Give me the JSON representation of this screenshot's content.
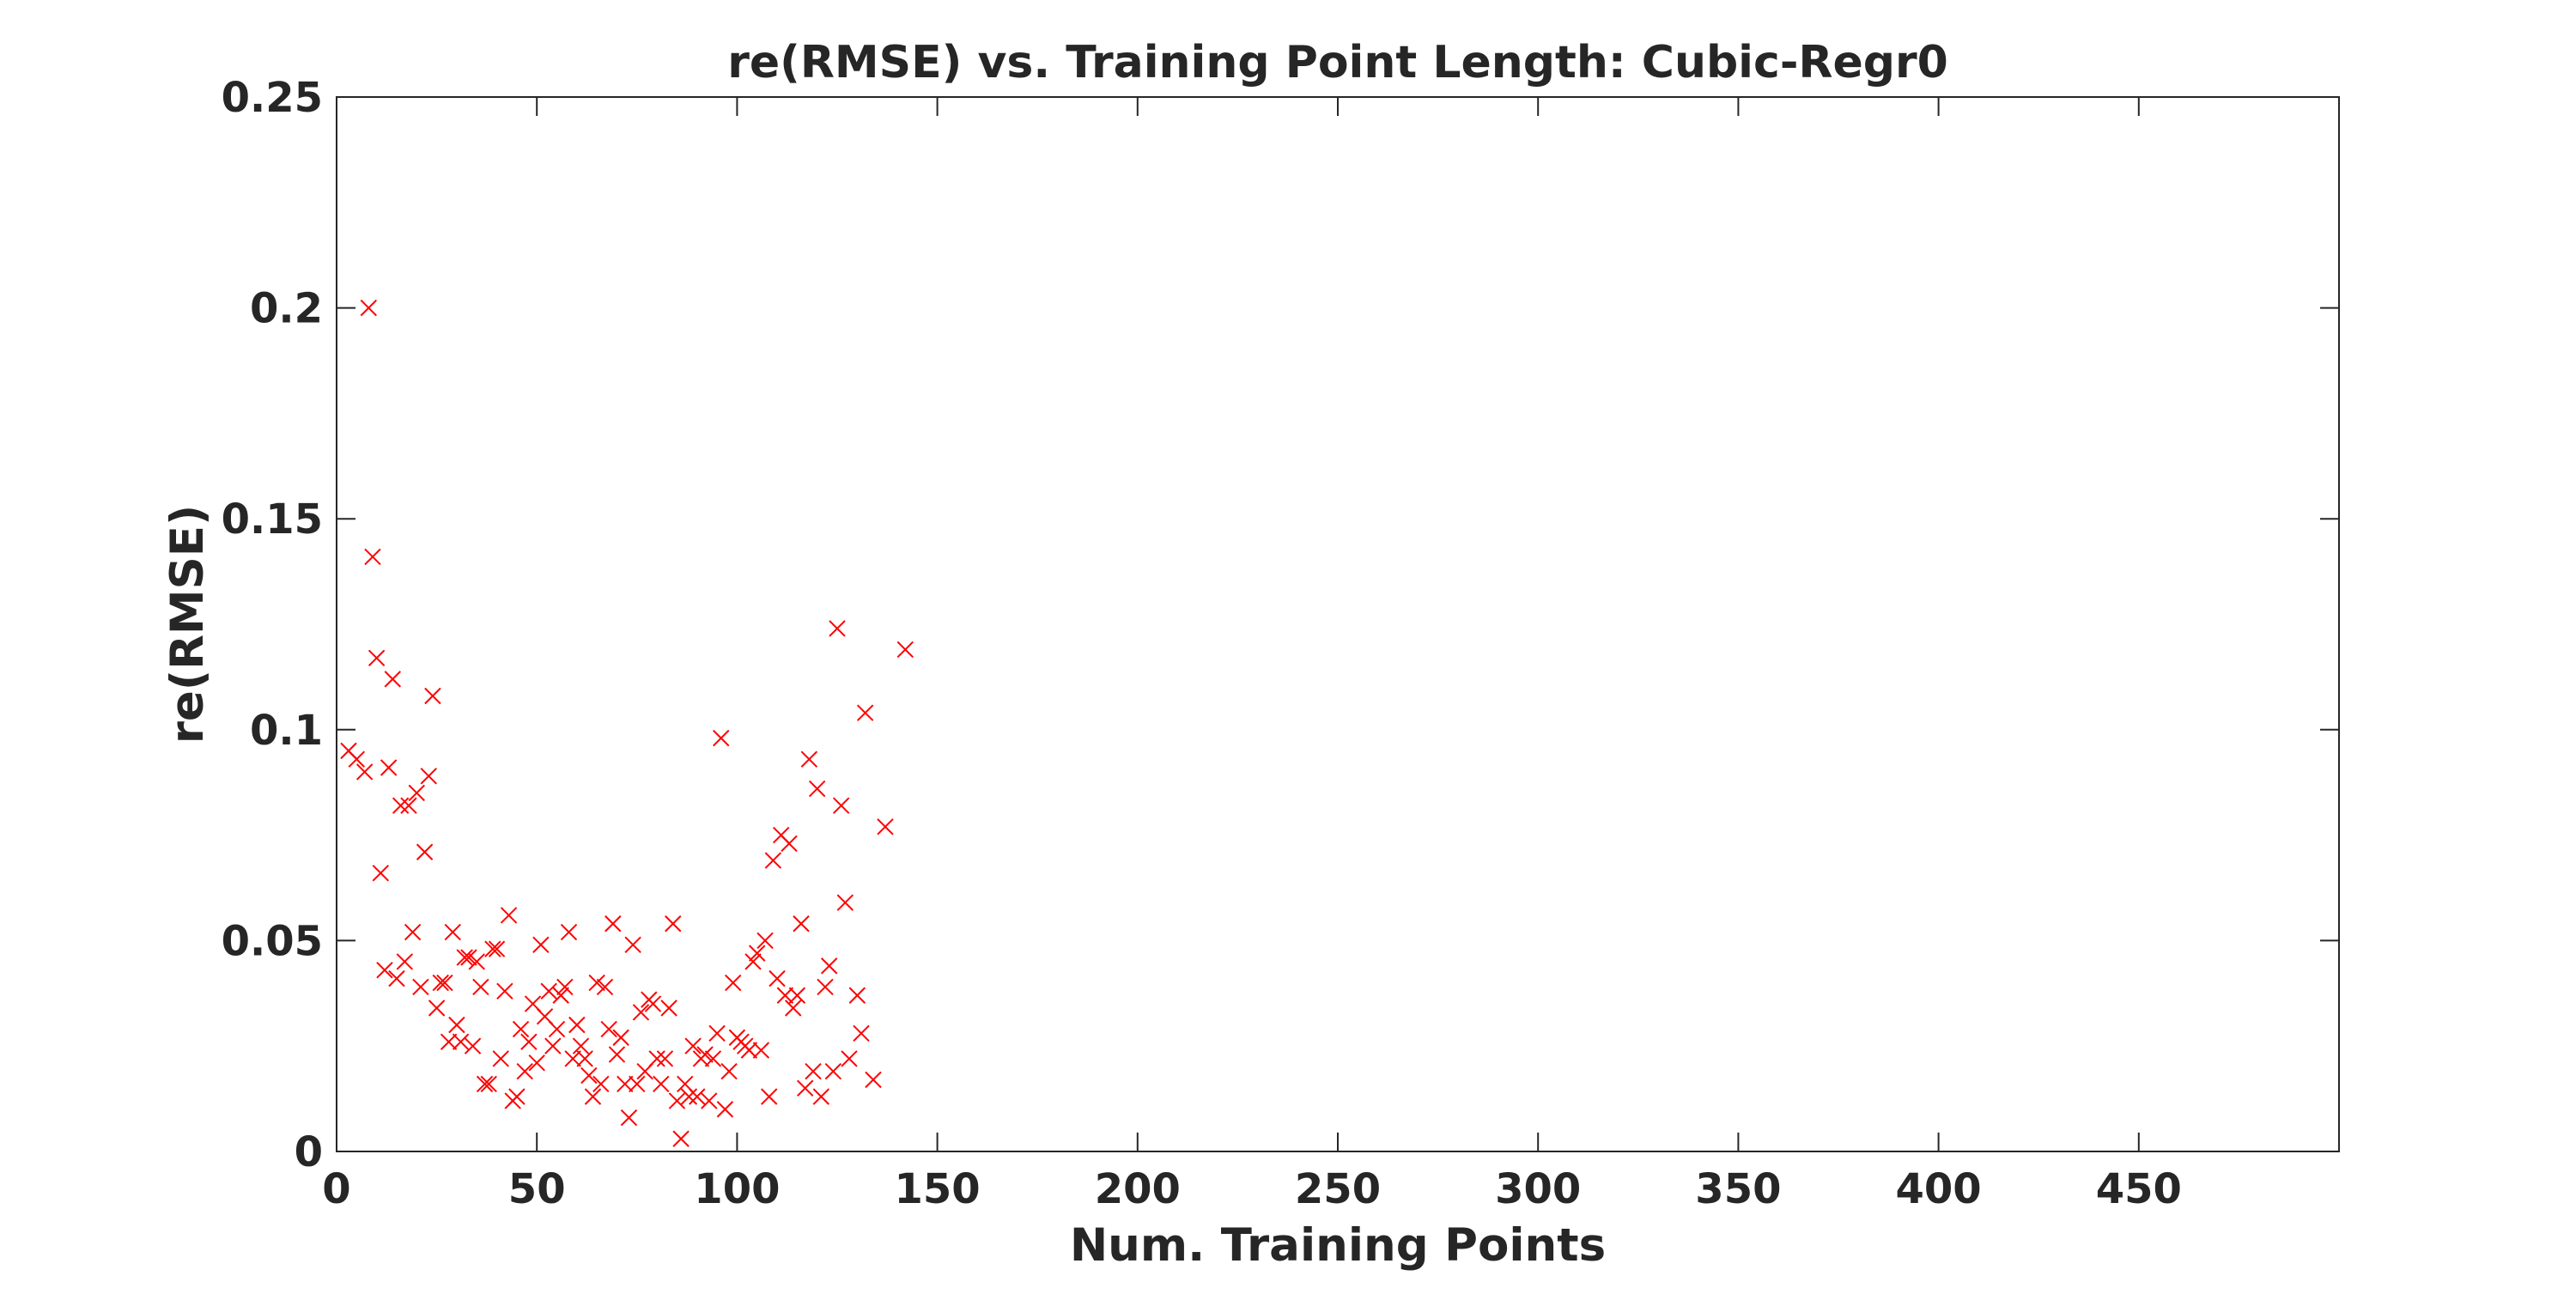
{
  "chart_data": {
    "type": "scatter",
    "title": "re(RMSE) vs. Training Point Length: Cubic-Regr0",
    "xlabel": "Num. Training Points",
    "ylabel": "re(RMSE)",
    "xlim": [
      0,
      500
    ],
    "ylim": [
      0,
      0.25
    ],
    "xticks": [
      0,
      50,
      100,
      150,
      200,
      250,
      300,
      350,
      400,
      450
    ],
    "xtick_labels": [
      "0",
      "50",
      "100",
      "150",
      "200",
      "250",
      "300",
      "350",
      "400",
      "450"
    ],
    "yticks": [
      0,
      0.05,
      0.1,
      0.15,
      0.2,
      0.25
    ],
    "ytick_labels": [
      "0",
      "0.05",
      "0.1",
      "0.15",
      "0.2",
      "0.25"
    ],
    "grid": false,
    "marker": "x",
    "marker_color": "#ff0000",
    "series": [
      {
        "name": "re(RMSE)",
        "points": [
          [
            3,
            0.095
          ],
          [
            5,
            0.093
          ],
          [
            7,
            0.09
          ],
          [
            8,
            0.2
          ],
          [
            9,
            0.141
          ],
          [
            10,
            0.117
          ],
          [
            11,
            0.066
          ],
          [
            12,
            0.043
          ],
          [
            13,
            0.091
          ],
          [
            14,
            0.112
          ],
          [
            15,
            0.041
          ],
          [
            16,
            0.082
          ],
          [
            17,
            0.045
          ],
          [
            18,
            0.082
          ],
          [
            19,
            0.052
          ],
          [
            20,
            0.085
          ],
          [
            21,
            0.039
          ],
          [
            22,
            0.071
          ],
          [
            23,
            0.089
          ],
          [
            24,
            0.108
          ],
          [
            25,
            0.034
          ],
          [
            26,
            0.04
          ],
          [
            27,
            0.04
          ],
          [
            28,
            0.026
          ],
          [
            29,
            0.052
          ],
          [
            30,
            0.03
          ],
          [
            31,
            0.026
          ],
          [
            32,
            0.046
          ],
          [
            33,
            0.046
          ],
          [
            34,
            0.025
          ],
          [
            35,
            0.045
          ],
          [
            36,
            0.039
          ],
          [
            37,
            0.016
          ],
          [
            38,
            0.016
          ],
          [
            39,
            0.048
          ],
          [
            40,
            0.048
          ],
          [
            41,
            0.022
          ],
          [
            42,
            0.038
          ],
          [
            43,
            0.056
          ],
          [
            44,
            0.012
          ],
          [
            45,
            0.013
          ],
          [
            46,
            0.029
          ],
          [
            47,
            0.019
          ],
          [
            48,
            0.026
          ],
          [
            49,
            0.035
          ],
          [
            50,
            0.021
          ],
          [
            51,
            0.049
          ],
          [
            52,
            0.032
          ],
          [
            53,
            0.038
          ],
          [
            54,
            0.025
          ],
          [
            55,
            0.029
          ],
          [
            56,
            0.037
          ],
          [
            57,
            0.039
          ],
          [
            58,
            0.052
          ],
          [
            59,
            0.022
          ],
          [
            60,
            0.03
          ],
          [
            61,
            0.025
          ],
          [
            62,
            0.022
          ],
          [
            63,
            0.018
          ],
          [
            64,
            0.013
          ],
          [
            65,
            0.04
          ],
          [
            66,
            0.016
          ],
          [
            67,
            0.039
          ],
          [
            68,
            0.029
          ],
          [
            69,
            0.054
          ],
          [
            70,
            0.023
          ],
          [
            71,
            0.027
          ],
          [
            72,
            0.016
          ],
          [
            73,
            0.008
          ],
          [
            74,
            0.049
          ],
          [
            75,
            0.016
          ],
          [
            76,
            0.033
          ],
          [
            77,
            0.019
          ],
          [
            78,
            0.036
          ],
          [
            79,
            0.035
          ],
          [
            80,
            0.022
          ],
          [
            81,
            0.016
          ],
          [
            82,
            0.022
          ],
          [
            83,
            0.034
          ],
          [
            84,
            0.054
          ],
          [
            85,
            0.012
          ],
          [
            86,
            0.003
          ],
          [
            87,
            0.016
          ],
          [
            88,
            0.013
          ],
          [
            89,
            0.025
          ],
          [
            90,
            0.013
          ],
          [
            91,
            0.022
          ],
          [
            92,
            0.023
          ],
          [
            93,
            0.012
          ],
          [
            94,
            0.022
          ],
          [
            95,
            0.028
          ],
          [
            96,
            0.098
          ],
          [
            97,
            0.01
          ],
          [
            98,
            0.019
          ],
          [
            99,
            0.04
          ],
          [
            100,
            0.027
          ],
          [
            101,
            0.026
          ],
          [
            102,
            0.025
          ],
          [
            103,
            0.024
          ],
          [
            104,
            0.045
          ],
          [
            105,
            0.047
          ],
          [
            106,
            0.024
          ],
          [
            107,
            0.05
          ],
          [
            108,
            0.013
          ],
          [
            109,
            0.069
          ],
          [
            110,
            0.041
          ],
          [
            111,
            0.075
          ],
          [
            112,
            0.037
          ],
          [
            113,
            0.073
          ],
          [
            114,
            0.034
          ],
          [
            115,
            0.037
          ],
          [
            116,
            0.054
          ],
          [
            117,
            0.015
          ],
          [
            118,
            0.093
          ],
          [
            119,
            0.019
          ],
          [
            120,
            0.086
          ],
          [
            121,
            0.013
          ],
          [
            122,
            0.039
          ],
          [
            123,
            0.044
          ],
          [
            124,
            0.019
          ],
          [
            125,
            0.124
          ],
          [
            126,
            0.082
          ],
          [
            127,
            0.059
          ],
          [
            128,
            0.022
          ],
          [
            130,
            0.037
          ],
          [
            131,
            0.028
          ],
          [
            132,
            0.104
          ],
          [
            134,
            0.017
          ],
          [
            137,
            0.077
          ],
          [
            142,
            0.119
          ]
        ]
      }
    ]
  }
}
